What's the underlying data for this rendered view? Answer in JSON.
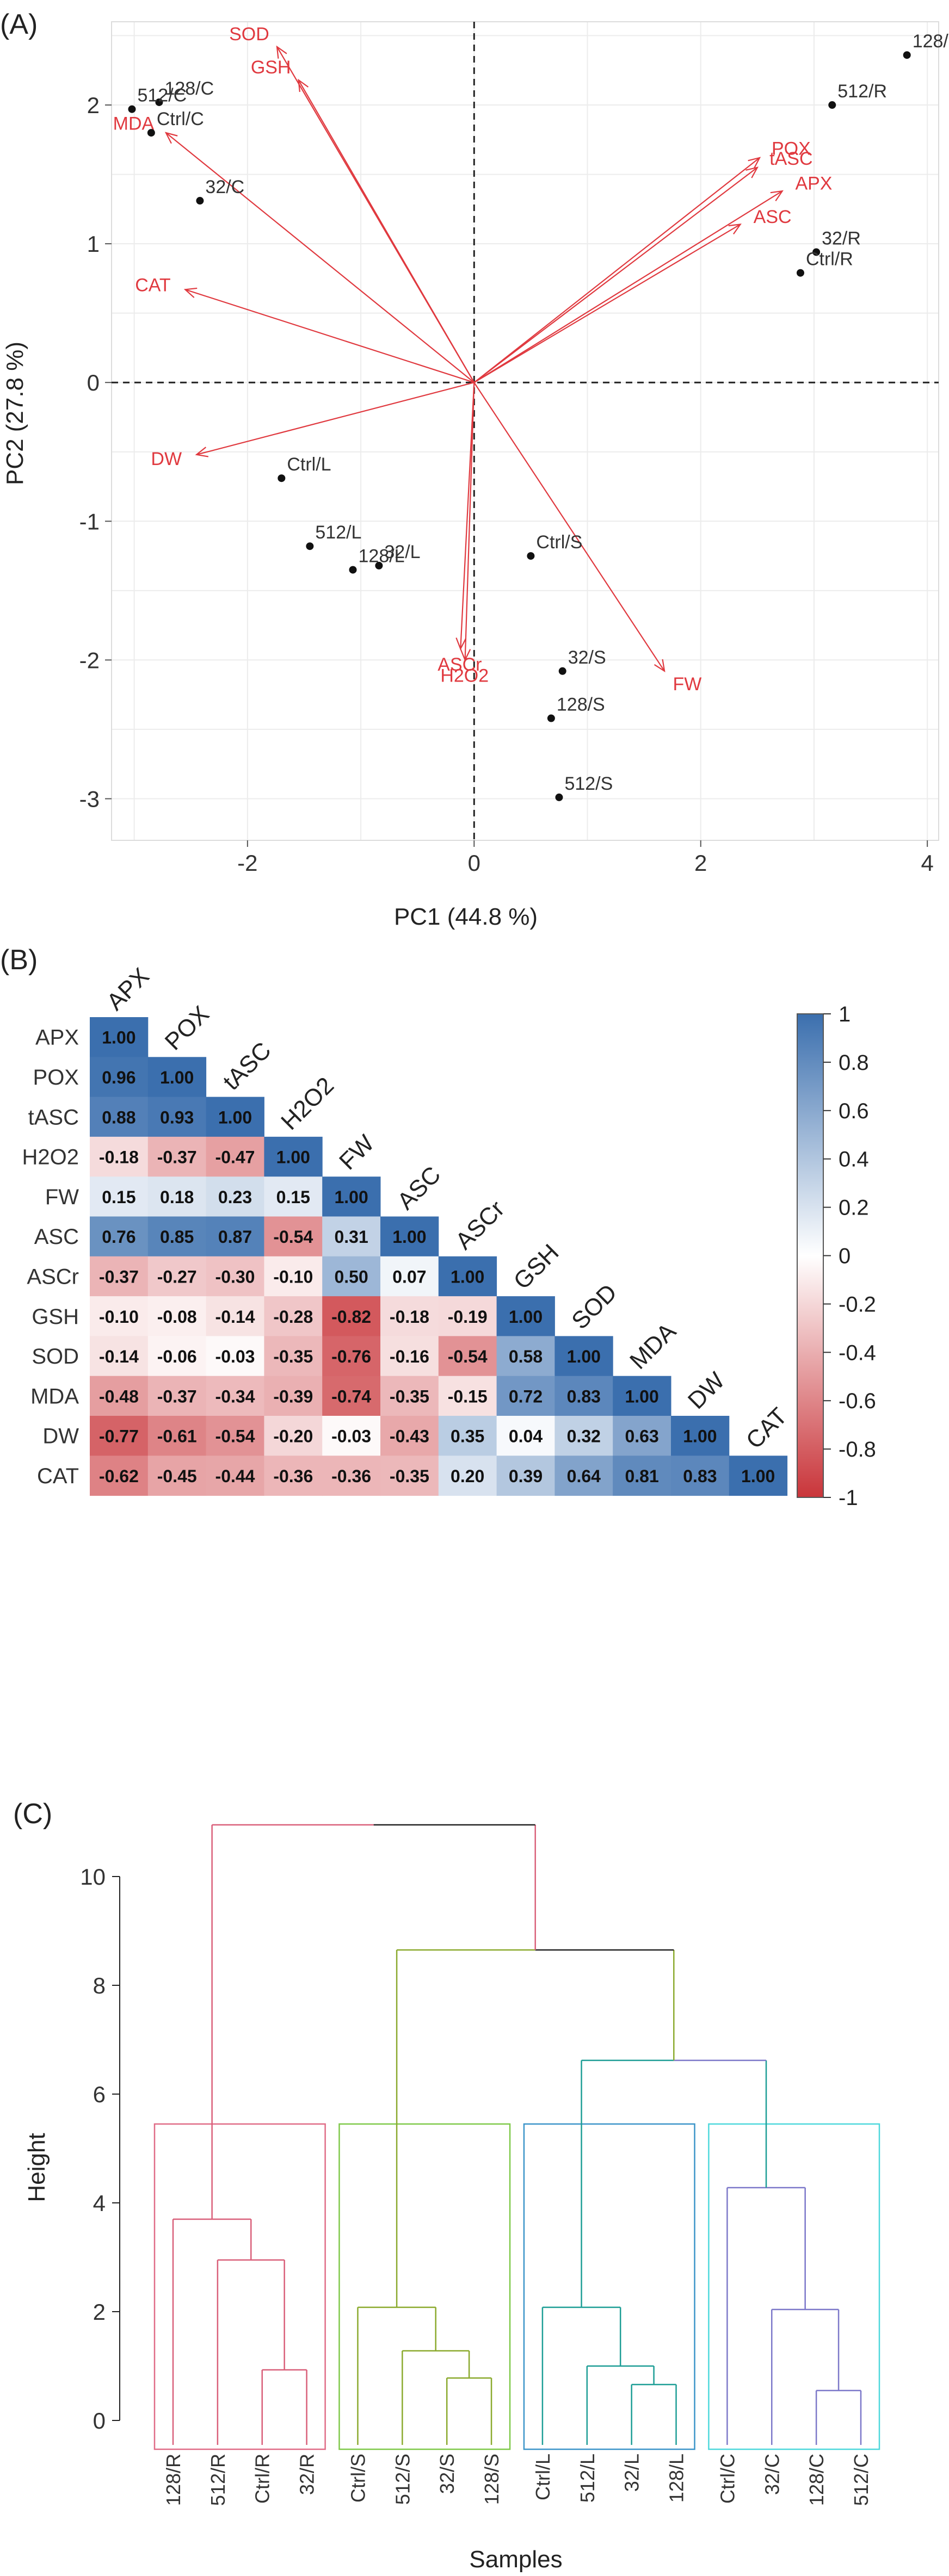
{
  "chart_data": [
    {
      "type": "scatter",
      "panel_label": "(A)",
      "xlabel": "PC1 (44.8 %)",
      "ylabel": "PC2 (27.8 %)",
      "xlim": [
        -3.2,
        4.1
      ],
      "ylim": [
        -3.3,
        2.6
      ],
      "xticks": [
        -2,
        0,
        2,
        4
      ],
      "yticks": [
        -3,
        -2,
        -1,
        0,
        1,
        2
      ],
      "grid": true,
      "reference_lines": "dashed lines at x=0 and y=0",
      "points": [
        {
          "label": "128/R",
          "x": 3.82,
          "y": 2.36
        },
        {
          "label": "512/R",
          "x": 3.16,
          "y": 2.0
        },
        {
          "label": "32/R",
          "x": 3.02,
          "y": 0.94
        },
        {
          "label": "Ctrl/R",
          "x": 2.88,
          "y": 0.79
        },
        {
          "label": "128/C",
          "x": -2.78,
          "y": 2.02
        },
        {
          "label": "512/C",
          "x": -3.02,
          "y": 1.97
        },
        {
          "label": "Ctrl/C",
          "x": -2.85,
          "y": 1.8
        },
        {
          "label": "32/C",
          "x": -2.42,
          "y": 1.31
        },
        {
          "label": "Ctrl/L",
          "x": -1.7,
          "y": -0.69
        },
        {
          "label": "512/L",
          "x": -1.45,
          "y": -1.18
        },
        {
          "label": "32/L",
          "x": -0.84,
          "y": -1.32
        },
        {
          "label": "128/L",
          "x": -1.07,
          "y": -1.35
        },
        {
          "label": "Ctrl/S",
          "x": 0.5,
          "y": -1.25
        },
        {
          "label": "32/S",
          "x": 0.78,
          "y": -2.08
        },
        {
          "label": "128/S",
          "x": 0.68,
          "y": -2.42
        },
        {
          "label": "512/S",
          "x": 0.75,
          "y": -2.99
        }
      ],
      "loadings": [
        {
          "label": "POX",
          "x": 2.52,
          "y": 1.62
        },
        {
          "label": "tASC",
          "x": 2.5,
          "y": 1.55
        },
        {
          "label": "APX",
          "x": 2.72,
          "y": 1.38
        },
        {
          "label": "ASC",
          "x": 2.35,
          "y": 1.14
        },
        {
          "label": "SOD",
          "x": -1.74,
          "y": 2.42
        },
        {
          "label": "GSH",
          "x": -1.55,
          "y": 2.18
        },
        {
          "label": "MDA",
          "x": -2.72,
          "y": 1.8
        },
        {
          "label": "CAT",
          "x": -2.55,
          "y": 0.67
        },
        {
          "label": "DW",
          "x": -2.45,
          "y": -0.52
        },
        {
          "label": "ASCr",
          "x": -0.12,
          "y": -1.92
        },
        {
          "label": "H2O2",
          "x": -0.08,
          "y": -2.0
        },
        {
          "label": "FW",
          "x": 1.68,
          "y": -2.08
        }
      ]
    },
    {
      "type": "heatmap",
      "panel_label": "(B)",
      "variables": [
        "APX",
        "POX",
        "tASC",
        "H2O2",
        "FW",
        "ASC",
        "ASCr",
        "GSH",
        "SOD",
        "MDA",
        "DW",
        "CAT"
      ],
      "matrix": [
        [
          "1.00"
        ],
        [
          "0.96",
          "1.00"
        ],
        [
          "0.88",
          "0.93",
          "1.00"
        ],
        [
          "-0.18",
          "-0.37",
          "-0.47",
          "1.00"
        ],
        [
          "0.15",
          "0.18",
          "0.23",
          "0.15",
          "1.00"
        ],
        [
          "0.76",
          "0.85",
          "0.87",
          "-0.54",
          "0.31",
          "1.00"
        ],
        [
          "-0.37",
          "-0.27",
          "-0.30",
          "-0.10",
          "0.50",
          "0.07",
          "1.00"
        ],
        [
          "-0.10",
          "-0.08",
          "-0.14",
          "-0.28",
          "-0.82",
          "-0.18",
          "-0.19",
          "1.00"
        ],
        [
          "-0.14",
          "-0.06",
          "-0.03",
          "-0.35",
          "-0.76",
          "-0.16",
          "-0.54",
          "0.58",
          "1.00"
        ],
        [
          "-0.48",
          "-0.37",
          "-0.34",
          "-0.39",
          "-0.74",
          "-0.35",
          "-0.15",
          "0.72",
          "0.83",
          "1.00"
        ],
        [
          "-0.77",
          "-0.61",
          "-0.54",
          "-0.20",
          "-0.03",
          "-0.43",
          "0.35",
          "0.04",
          "0.32",
          "0.63",
          "1.00"
        ],
        [
          "-0.62",
          "-0.45",
          "-0.44",
          "-0.36",
          "-0.36",
          "-0.35",
          "0.20",
          "0.39",
          "0.64",
          "0.81",
          "0.83",
          "1.00"
        ]
      ],
      "colorbar_ticks": [
        "1",
        "0.8",
        "0.6",
        "0.4",
        "0.2",
        "0",
        "-0.2",
        "-0.4",
        "-0.6",
        "-0.8",
        "-1"
      ],
      "color_high": "#3B6FAE",
      "color_mid": "#FFFFFF",
      "color_low": "#C9353A"
    },
    {
      "type": "dendrogram",
      "panel_label": "(C)",
      "xlabel": "Samples",
      "ylabel": "Height",
      "ylim": [
        -0.8,
        11.2
      ],
      "yticks": [
        0,
        2,
        4,
        6,
        8,
        10
      ],
      "leaves": [
        "128/R",
        "512/R",
        "Ctrl/R",
        "32/R",
        "Ctrl/S",
        "512/S",
        "32/S",
        "128/S",
        "Ctrl/L",
        "512/L",
        "32/L",
        "128/L",
        "Ctrl/C",
        "32/C",
        "128/C",
        "512/C"
      ],
      "cut_height": 5.45,
      "clusters": [
        {
          "leaf_range": [
            0,
            3
          ],
          "color": "#D9607A",
          "box_color": "#E06C87"
        },
        {
          "leaf_range": [
            4,
            7
          ],
          "color": "#8BAA2E",
          "box_color": "#7FC94A"
        },
        {
          "leaf_range": [
            8,
            11
          ],
          "color": "#1E9E96",
          "box_color": "#3C95C9"
        },
        {
          "leaf_range": [
            12,
            15
          ],
          "color": "#7C78C9",
          "box_color": "#4ED8DC"
        }
      ],
      "merges": [
        {
          "a": "L3",
          "b": "L2",
          "h": 0.93,
          "color": "#D9607A"
        },
        {
          "a": "L1",
          "b": "N0",
          "h": 2.95,
          "color": "#D9607A"
        },
        {
          "a": "L0",
          "b": "N1",
          "h": 3.7,
          "color": "#D9607A"
        },
        {
          "a": "L6",
          "b": "L7",
          "h": 0.78,
          "color": "#8BAA2E"
        },
        {
          "a": "L5",
          "b": "N3",
          "h": 1.28,
          "color": "#8BAA2E"
        },
        {
          "a": "L4",
          "b": "N4",
          "h": 2.08,
          "color": "#8BAA2E"
        },
        {
          "a": "L10",
          "b": "L11",
          "h": 0.66,
          "color": "#1E9E96"
        },
        {
          "a": "L9",
          "b": "N6",
          "h": 1.0,
          "color": "#1E9E96"
        },
        {
          "a": "L8",
          "b": "N7",
          "h": 2.08,
          "color": "#1E9E96"
        },
        {
          "a": "L14",
          "b": "L15",
          "h": 0.55,
          "color": "#7C78C9"
        },
        {
          "a": "L13",
          "b": "N9",
          "h": 2.04,
          "color": "#7C78C9"
        },
        {
          "a": "L12",
          "b": "N10",
          "h": 4.28,
          "color": "#7C78C9"
        },
        {
          "a": "N8",
          "b": "N11",
          "h": 6.62,
          "color": "#1E9E96|#7C78C9"
        },
        {
          "a": "N5",
          "b": "N12",
          "h": 8.65,
          "color": "#8BAA2E|#222222"
        },
        {
          "a": "N2",
          "b": "N13",
          "h": 10.95,
          "color": "#D9607A|#222222"
        }
      ]
    }
  ]
}
